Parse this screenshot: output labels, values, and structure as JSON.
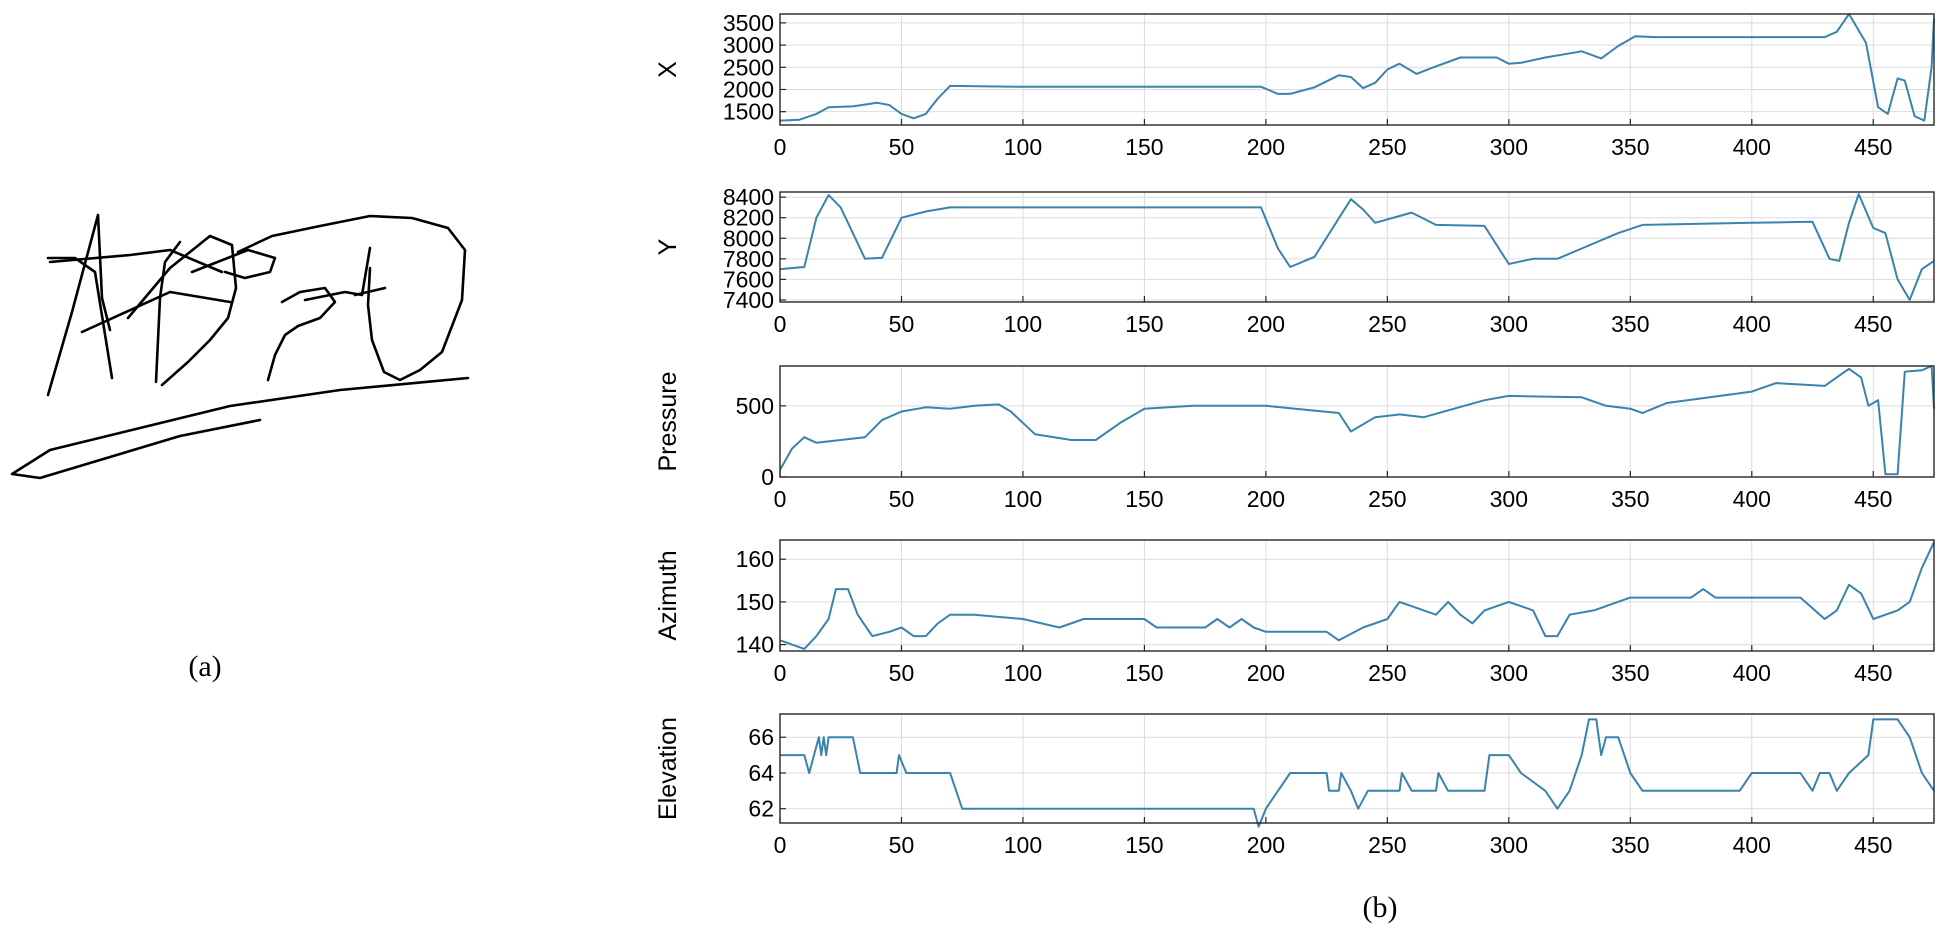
{
  "figure": {
    "caption_a": "(a)",
    "caption_b": "(b)"
  },
  "colors": {
    "line": "#3a83ad",
    "grid": "#dcdcdc",
    "axis": "#262626",
    "ink": "#000000"
  },
  "chart_data": [
    {
      "type": "line",
      "ylabel": "X",
      "xlim": [
        0,
        475
      ],
      "ylim": [
        1200,
        3700
      ],
      "xticks": [
        0,
        50,
        100,
        150,
        200,
        250,
        300,
        350,
        400,
        450
      ],
      "yticks": [
        1500,
        2000,
        2500,
        3000,
        3500
      ],
      "points": [
        [
          0,
          1300
        ],
        [
          8,
          1320
        ],
        [
          15,
          1450
        ],
        [
          20,
          1600
        ],
        [
          30,
          1620
        ],
        [
          40,
          1700
        ],
        [
          45,
          1650
        ],
        [
          50,
          1450
        ],
        [
          55,
          1350
        ],
        [
          60,
          1450
        ],
        [
          65,
          1800
        ],
        [
          70,
          2080
        ],
        [
          100,
          2060
        ],
        [
          150,
          2060
        ],
        [
          198,
          2060
        ],
        [
          205,
          1900
        ],
        [
          210,
          1900
        ],
        [
          220,
          2050
        ],
        [
          230,
          2320
        ],
        [
          235,
          2280
        ],
        [
          240,
          2030
        ],
        [
          245,
          2150
        ],
        [
          250,
          2450
        ],
        [
          255,
          2580
        ],
        [
          262,
          2350
        ],
        [
          268,
          2480
        ],
        [
          280,
          2720
        ],
        [
          295,
          2720
        ],
        [
          300,
          2580
        ],
        [
          305,
          2600
        ],
        [
          315,
          2720
        ],
        [
          330,
          2860
        ],
        [
          338,
          2700
        ],
        [
          345,
          2980
        ],
        [
          352,
          3200
        ],
        [
          360,
          3180
        ],
        [
          430,
          3180
        ],
        [
          435,
          3300
        ],
        [
          440,
          3700
        ],
        [
          447,
          3050
        ],
        [
          452,
          1600
        ],
        [
          456,
          1450
        ],
        [
          460,
          2250
        ],
        [
          463,
          2200
        ],
        [
          467,
          1400
        ],
        [
          471,
          1300
        ],
        [
          474,
          2500
        ],
        [
          475,
          3600
        ]
      ]
    },
    {
      "type": "line",
      "ylabel": "Y",
      "xlim": [
        0,
        475
      ],
      "ylim": [
        7380,
        8450
      ],
      "xticks": [
        0,
        50,
        100,
        150,
        200,
        250,
        300,
        350,
        400,
        450
      ],
      "yticks": [
        7400,
        7600,
        7800,
        8000,
        8200,
        8400
      ],
      "points": [
        [
          0,
          7700
        ],
        [
          10,
          7720
        ],
        [
          15,
          8200
        ],
        [
          20,
          8420
        ],
        [
          25,
          8300
        ],
        [
          35,
          7800
        ],
        [
          42,
          7810
        ],
        [
          50,
          8200
        ],
        [
          60,
          8260
        ],
        [
          70,
          8300
        ],
        [
          150,
          8300
        ],
        [
          198,
          8300
        ],
        [
          205,
          7900
        ],
        [
          210,
          7720
        ],
        [
          220,
          7820
        ],
        [
          235,
          8380
        ],
        [
          240,
          8280
        ],
        [
          245,
          8150
        ],
        [
          260,
          8250
        ],
        [
          270,
          8130
        ],
        [
          290,
          8120
        ],
        [
          300,
          7750
        ],
        [
          310,
          7800
        ],
        [
          320,
          7800
        ],
        [
          330,
          7900
        ],
        [
          345,
          8050
        ],
        [
          355,
          8130
        ],
        [
          400,
          8150
        ],
        [
          425,
          8160
        ],
        [
          432,
          7800
        ],
        [
          436,
          7780
        ],
        [
          440,
          8150
        ],
        [
          444,
          8430
        ],
        [
          450,
          8100
        ],
        [
          455,
          8050
        ],
        [
          460,
          7600
        ],
        [
          465,
          7400
        ],
        [
          470,
          7700
        ],
        [
          475,
          7780
        ]
      ]
    },
    {
      "type": "line",
      "ylabel": "Pressure",
      "xlim": [
        0,
        475
      ],
      "ylim": [
        0,
        780
      ],
      "xticks": [
        0,
        50,
        100,
        150,
        200,
        250,
        300,
        350,
        400,
        450
      ],
      "yticks": [
        0,
        500
      ],
      "points": [
        [
          0,
          50
        ],
        [
          5,
          200
        ],
        [
          10,
          280
        ],
        [
          15,
          240
        ],
        [
          25,
          260
        ],
        [
          35,
          280
        ],
        [
          42,
          400
        ],
        [
          50,
          460
        ],
        [
          60,
          490
        ],
        [
          70,
          480
        ],
        [
          80,
          500
        ],
        [
          90,
          510
        ],
        [
          95,
          460
        ],
        [
          105,
          300
        ],
        [
          120,
          260
        ],
        [
          130,
          260
        ],
        [
          140,
          380
        ],
        [
          150,
          480
        ],
        [
          170,
          500
        ],
        [
          200,
          500
        ],
        [
          230,
          450
        ],
        [
          235,
          320
        ],
        [
          245,
          420
        ],
        [
          255,
          440
        ],
        [
          265,
          420
        ],
        [
          290,
          540
        ],
        [
          300,
          570
        ],
        [
          330,
          560
        ],
        [
          340,
          500
        ],
        [
          350,
          480
        ],
        [
          355,
          450
        ],
        [
          365,
          520
        ],
        [
          400,
          600
        ],
        [
          410,
          660
        ],
        [
          430,
          640
        ],
        [
          440,
          760
        ],
        [
          445,
          700
        ],
        [
          448,
          500
        ],
        [
          452,
          540
        ],
        [
          455,
          20
        ],
        [
          460,
          20
        ],
        [
          463,
          740
        ],
        [
          470,
          750
        ],
        [
          474,
          780
        ],
        [
          475,
          480
        ]
      ]
    },
    {
      "type": "line",
      "ylabel": "Azimuth",
      "xlim": [
        0,
        475
      ],
      "ylim": [
        138.5,
        164.5
      ],
      "xticks": [
        0,
        50,
        100,
        150,
        200,
        250,
        300,
        350,
        400,
        450
      ],
      "yticks": [
        140,
        150,
        160
      ],
      "points": [
        [
          0,
          141
        ],
        [
          5,
          140
        ],
        [
          10,
          139
        ],
        [
          15,
          142
        ],
        [
          20,
          146
        ],
        [
          23,
          153
        ],
        [
          28,
          153
        ],
        [
          32,
          147
        ],
        [
          38,
          142
        ],
        [
          45,
          143
        ],
        [
          50,
          144
        ],
        [
          55,
          142
        ],
        [
          60,
          142
        ],
        [
          65,
          145
        ],
        [
          70,
          147
        ],
        [
          80,
          147
        ],
        [
          100,
          146
        ],
        [
          115,
          144
        ],
        [
          125,
          146
        ],
        [
          150,
          146
        ],
        [
          155,
          144
        ],
        [
          175,
          144
        ],
        [
          180,
          146
        ],
        [
          185,
          144
        ],
        [
          190,
          146
        ],
        [
          195,
          144
        ],
        [
          200,
          143
        ],
        [
          225,
          143
        ],
        [
          230,
          141
        ],
        [
          240,
          144
        ],
        [
          250,
          146
        ],
        [
          255,
          150
        ],
        [
          265,
          148
        ],
        [
          270,
          147
        ],
        [
          275,
          150
        ],
        [
          280,
          147
        ],
        [
          285,
          145
        ],
        [
          290,
          148
        ],
        [
          300,
          150
        ],
        [
          310,
          148
        ],
        [
          315,
          142
        ],
        [
          320,
          142
        ],
        [
          325,
          147
        ],
        [
          335,
          148
        ],
        [
          350,
          151
        ],
        [
          375,
          151
        ],
        [
          380,
          153
        ],
        [
          385,
          151
        ],
        [
          420,
          151
        ],
        [
          430,
          146
        ],
        [
          435,
          148
        ],
        [
          440,
          154
        ],
        [
          445,
          152
        ],
        [
          450,
          146
        ],
        [
          460,
          148
        ],
        [
          465,
          150
        ],
        [
          470,
          158
        ],
        [
          475,
          164
        ]
      ]
    },
    {
      "type": "line",
      "ylabel": "Elevation",
      "xlim": [
        0,
        475
      ],
      "ylim": [
        61.2,
        67.3
      ],
      "xticks": [
        0,
        50,
        100,
        150,
        200,
        250,
        300,
        350,
        400,
        450
      ],
      "yticks": [
        62,
        64,
        66
      ],
      "points": [
        [
          0,
          65
        ],
        [
          10,
          65
        ],
        [
          12,
          64
        ],
        [
          14,
          65
        ],
        [
          16,
          66
        ],
        [
          17,
          65
        ],
        [
          18,
          66
        ],
        [
          19,
          65
        ],
        [
          20,
          66
        ],
        [
          30,
          66
        ],
        [
          33,
          64
        ],
        [
          48,
          64
        ],
        [
          49,
          65
        ],
        [
          52,
          64
        ],
        [
          70,
          64
        ],
        [
          75,
          62
        ],
        [
          195,
          62
        ],
        [
          197,
          61
        ],
        [
          200,
          62
        ],
        [
          205,
          63
        ],
        [
          210,
          64
        ],
        [
          225,
          64
        ],
        [
          226,
          63
        ],
        [
          230,
          63
        ],
        [
          231,
          64
        ],
        [
          235,
          63
        ],
        [
          238,
          62
        ],
        [
          242,
          63
        ],
        [
          255,
          63
        ],
        [
          256,
          64
        ],
        [
          260,
          63
        ],
        [
          270,
          63
        ],
        [
          271,
          64
        ],
        [
          275,
          63
        ],
        [
          290,
          63
        ],
        [
          292,
          65
        ],
        [
          300,
          65
        ],
        [
          305,
          64
        ],
        [
          315,
          63
        ],
        [
          320,
          62
        ],
        [
          325,
          63
        ],
        [
          330,
          65
        ],
        [
          333,
          67
        ],
        [
          336,
          67
        ],
        [
          338,
          65
        ],
        [
          340,
          66
        ],
        [
          345,
          66
        ],
        [
          350,
          64
        ],
        [
          355,
          63
        ],
        [
          395,
          63
        ],
        [
          400,
          64
        ],
        [
          420,
          64
        ],
        [
          425,
          63
        ],
        [
          428,
          64
        ],
        [
          432,
          64
        ],
        [
          435,
          63
        ],
        [
          440,
          64
        ],
        [
          448,
          65
        ],
        [
          450,
          67
        ],
        [
          460,
          67
        ],
        [
          465,
          66
        ],
        [
          470,
          64
        ],
        [
          475,
          63
        ]
      ]
    }
  ],
  "signature": {
    "strokes": [
      [
        [
          48,
          258
        ],
        [
          75,
          258
        ],
        [
          95,
          272
        ],
        [
          112,
          378
        ]
      ],
      [
        [
          48,
          395
        ],
        [
          72,
          312
        ],
        [
          98,
          215
        ],
        [
          102,
          298
        ],
        [
          110,
          330
        ]
      ],
      [
        [
          50,
          262
        ],
        [
          130,
          255
        ],
        [
          170,
          250
        ],
        [
          222,
          272
        ]
      ],
      [
        [
          82,
          332
        ],
        [
          170,
          292
        ],
        [
          230,
          302
        ]
      ],
      [
        [
          128,
          318
        ],
        [
          170,
          268
        ],
        [
          210,
          236
        ],
        [
          232,
          245
        ],
        [
          236,
          288
        ],
        [
          228,
          318
        ],
        [
          210,
          340
        ],
        [
          188,
          362
        ],
        [
          162,
          385
        ]
      ],
      [
        [
          156,
          382
        ],
        [
          160,
          298
        ],
        [
          165,
          262
        ],
        [
          180,
          242
        ]
      ],
      [
        [
          192,
          272
        ],
        [
          248,
          250
        ],
        [
          275,
          258
        ],
        [
          270,
          272
        ],
        [
          245,
          278
        ],
        [
          225,
          272
        ]
      ],
      [
        [
          282,
          302
        ],
        [
          300,
          292
        ],
        [
          325,
          288
        ],
        [
          335,
          302
        ],
        [
          320,
          318
        ],
        [
          298,
          326
        ],
        [
          285,
          335
        ],
        [
          275,
          355
        ],
        [
          268,
          380
        ]
      ],
      [
        [
          305,
          300
        ],
        [
          345,
          292
        ],
        [
          362,
          295
        ],
        [
          370,
          248
        ]
      ],
      [
        [
          355,
          295
        ],
        [
          385,
          288
        ]
      ],
      [
        [
          370,
          268
        ],
        [
          368,
          305
        ],
        [
          372,
          340
        ],
        [
          384,
          372
        ],
        [
          400,
          380
        ],
        [
          420,
          370
        ],
        [
          442,
          352
        ],
        [
          462,
          300
        ],
        [
          465,
          250
        ],
        [
          448,
          228
        ],
        [
          412,
          218
        ],
        [
          370,
          216
        ],
        [
          320,
          226
        ],
        [
          272,
          236
        ],
        [
          238,
          252
        ]
      ],
      [
        [
          468,
          378
        ],
        [
          340,
          390
        ],
        [
          230,
          406
        ],
        [
          140,
          428
        ],
        [
          50,
          450
        ],
        [
          12,
          474
        ],
        [
          40,
          478
        ],
        [
          100,
          460
        ],
        [
          180,
          436
        ],
        [
          260,
          420
        ]
      ]
    ]
  }
}
